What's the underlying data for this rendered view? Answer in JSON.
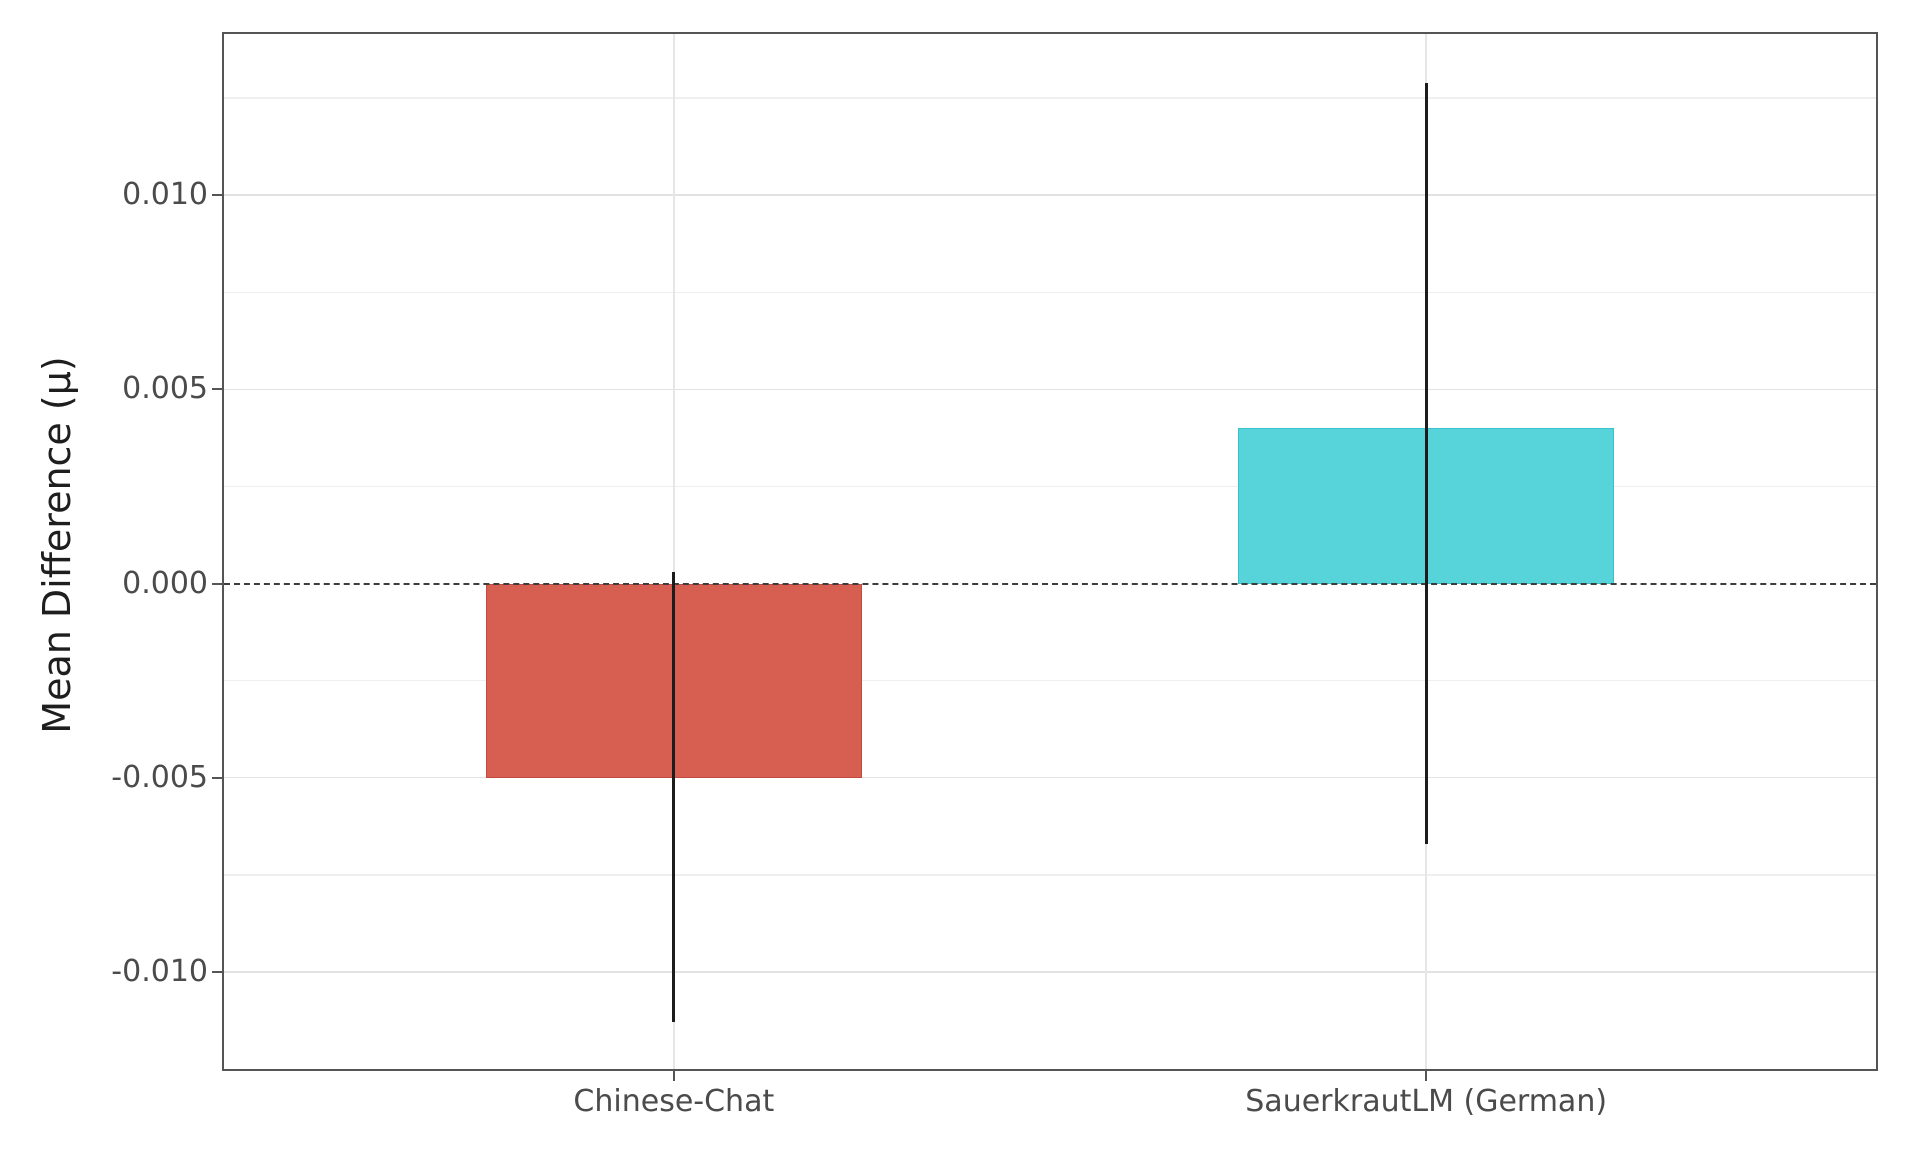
{
  "figure": {
    "background": "#ffffff"
  },
  "chart_data": {
    "type": "bar",
    "title": "",
    "xlabel": "",
    "ylabel": "Mean Difference (μ)",
    "categories": [
      "Chinese-Chat",
      "SauerkrautLM (German)"
    ],
    "values": [
      -0.005,
      0.004
    ],
    "error_bars": [
      {
        "low": -0.0113,
        "high": 0.0003
      },
      {
        "low": -0.0067,
        "high": 0.0129
      }
    ],
    "bar_colors": [
      "#d65f52",
      "#57d3da"
    ],
    "bar_edge_colors": [
      "#c24a3e",
      "#38c2cc"
    ],
    "ylim": [
      -0.0125,
      0.01415
    ],
    "yticks": [
      {
        "value": 0.01,
        "label": "0.010"
      },
      {
        "value": 0.005,
        "label": "0.005"
      },
      {
        "value": 0.0,
        "label": "0.000"
      },
      {
        "value": -0.005,
        "label": "-0.005"
      },
      {
        "value": -0.01,
        "label": "-0.010"
      }
    ],
    "minor_gridlines": [
      0.0125,
      0.0075,
      0.0025,
      -0.0025,
      -0.0075
    ],
    "zero_line": {
      "value": 0,
      "style": "dashed",
      "color": "#3d3d3d"
    },
    "grid": "on",
    "legend": "none",
    "colors": {
      "grid_major": "#e2e2e2",
      "grid_minor": "#efefef",
      "grid_vertical": "#e6e6e6",
      "spine": "#555555",
      "tick_text": "#4b4b4b",
      "axis_label_text": "#1e1e1e",
      "error_bar": "#1c1c1c"
    }
  }
}
